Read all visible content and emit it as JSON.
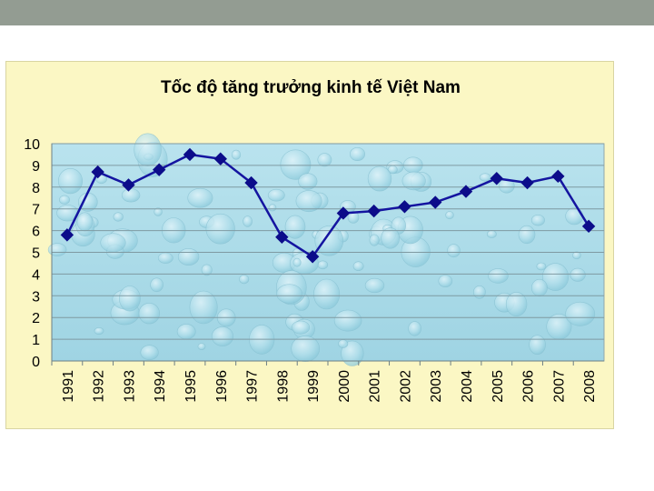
{
  "chart_data": {
    "type": "line",
    "title": "Tốc độ tăng trưởng kinh tế Việt Nam",
    "xlabel": "",
    "ylabel": "",
    "categories": [
      "1991",
      "1992",
      "1993",
      "1994",
      "1995",
      "1996",
      "1997",
      "1998",
      "1999",
      "2000",
      "2001",
      "2002",
      "2003",
      "2004",
      "2005",
      "2006",
      "2007",
      "2008"
    ],
    "values": [
      5.8,
      8.7,
      8.1,
      8.8,
      9.5,
      9.3,
      8.2,
      5.7,
      4.8,
      6.8,
      6.9,
      7.1,
      7.3,
      7.8,
      8.4,
      8.2,
      8.5,
      6.2
    ],
    "ylim": [
      0,
      10
    ],
    "yticks": [
      "0",
      "1",
      "2",
      "3",
      "4",
      "5",
      "6",
      "7",
      "8",
      "9",
      "10"
    ],
    "grid": true,
    "legend": "none",
    "colors": {
      "line": "#1414a0",
      "marker": "#0c0c8a",
      "frame_background": "#fbf7c4",
      "plot_background": "#a9dbe8",
      "header_bar": "#939c92"
    },
    "marker": "diamond"
  }
}
